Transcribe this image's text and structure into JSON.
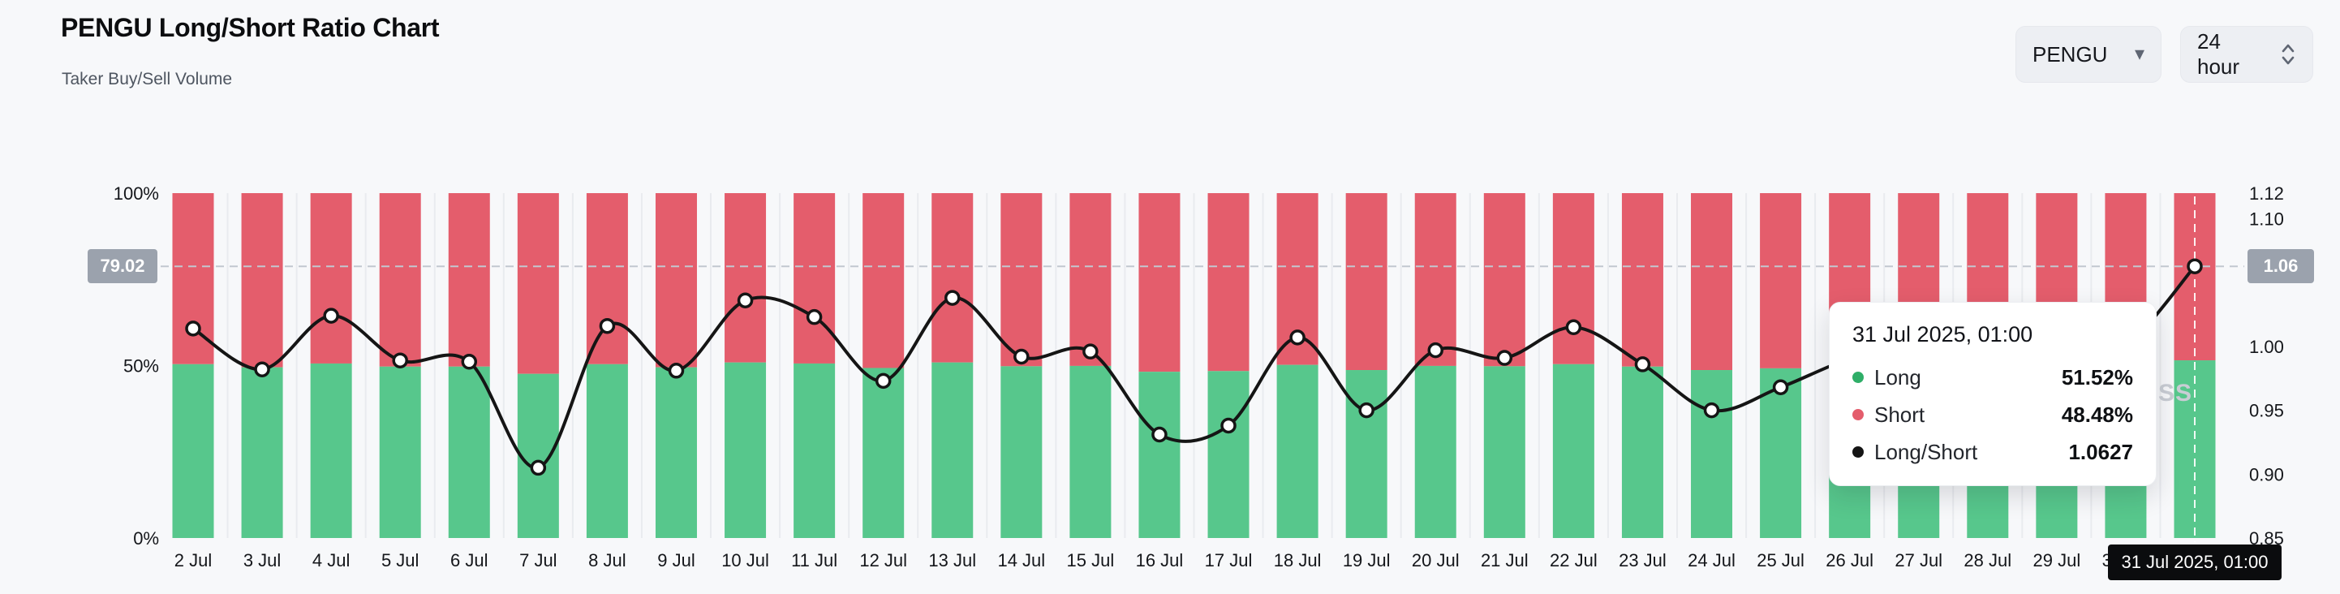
{
  "header": {
    "title": "PENGU Long/Short Ratio Chart",
    "subtitle": "Taker Buy/Sell Volume"
  },
  "controls": {
    "symbol_select": {
      "value": "PENGU",
      "caret_icon": "▾"
    },
    "interval_select": {
      "value": "24 hour"
    }
  },
  "chart_data": {
    "type": "stacked_bar_with_line",
    "title": "PENGU Long/Short Ratio Chart",
    "categories": [
      "2 Jul",
      "3 Jul",
      "4 Jul",
      "5 Jul",
      "6 Jul",
      "7 Jul",
      "8 Jul",
      "9 Jul",
      "10 Jul",
      "11 Jul",
      "12 Jul",
      "13 Jul",
      "14 Jul",
      "15 Jul",
      "16 Jul",
      "17 Jul",
      "18 Jul",
      "19 Jul",
      "20 Jul",
      "21 Jul",
      "22 Jul",
      "23 Jul",
      "24 Jul",
      "25 Jul",
      "26 Jul",
      "27 Jul",
      "28 Jul",
      "29 Jul",
      "30 Jul",
      "31 Jul"
    ],
    "series": [
      {
        "name": "Long",
        "type": "bar",
        "unit": "%",
        "color": "#57c78c",
        "values": [
          50.4,
          49.5,
          50.6,
          49.7,
          49.7,
          47.6,
          50.4,
          49.5,
          50.9,
          50.6,
          49.3,
          50.9,
          49.8,
          49.9,
          48.2,
          48.4,
          50.2,
          48.7,
          49.9,
          49.8,
          50.4,
          49.7,
          48.7,
          49.2,
          49.5,
          49.8,
          49.6,
          49.4,
          49.7,
          51.52
        ]
      },
      {
        "name": "Short",
        "type": "bar",
        "unit": "%",
        "color": "#e45d6c",
        "values": [
          49.6,
          50.5,
          49.4,
          50.3,
          50.3,
          52.4,
          49.6,
          50.5,
          49.1,
          49.4,
          50.7,
          49.1,
          50.2,
          50.1,
          51.8,
          51.6,
          49.8,
          51.3,
          50.1,
          50.2,
          49.6,
          50.3,
          51.3,
          50.8,
          50.5,
          50.2,
          50.4,
          50.6,
          50.3,
          48.48
        ]
      },
      {
        "name": "Long/Short",
        "type": "line",
        "unit": "",
        "color": "#151515",
        "values": [
          1.014,
          0.982,
          1.024,
          0.989,
          0.988,
          0.905,
          1.016,
          0.981,
          1.036,
          1.023,
          0.973,
          1.038,
          0.992,
          0.996,
          0.931,
          0.938,
          1.007,
          0.95,
          0.997,
          0.991,
          1.015,
          0.986,
          0.95,
          0.968,
          0.99,
          1.0,
          0.99,
          0.98,
          1.0,
          1.0627
        ]
      }
    ],
    "left_axis": {
      "range": [
        0,
        100
      ],
      "ticks": [
        {
          "label": "100%",
          "value": 100
        },
        {
          "label": "50%",
          "value": 50
        },
        {
          "label": "0%",
          "value": 0
        }
      ]
    },
    "right_axis": {
      "range": [
        0.85,
        1.12
      ],
      "ticks": [
        {
          "label": "1.12",
          "value": 1.12
        },
        {
          "label": "1.10",
          "value": 1.1
        },
        {
          "label": "1.00",
          "value": 1.0
        },
        {
          "label": "0.95",
          "value": 0.95
        },
        {
          "label": "0.90",
          "value": 0.9
        },
        {
          "label": "0.85",
          "value": 0.85
        }
      ]
    },
    "grid": "vertical-light",
    "legend": "none",
    "crosshair": {
      "ratio_value": 1.0627,
      "left_badge": "79.02",
      "right_badge": "1.06",
      "date_badge": "31 Jul 2025, 01:00"
    }
  },
  "tooltip": {
    "title": "31 Jul 2025, 01:00",
    "rows": [
      {
        "label": "Long",
        "value": "51.52%",
        "color": "#2fae68"
      },
      {
        "label": "Short",
        "value": "48.48%",
        "color": "#e45d6c"
      },
      {
        "label": "Long/Short",
        "value": "1.0627",
        "color": "#151515"
      }
    ]
  },
  "watermark_fragment": "SS"
}
